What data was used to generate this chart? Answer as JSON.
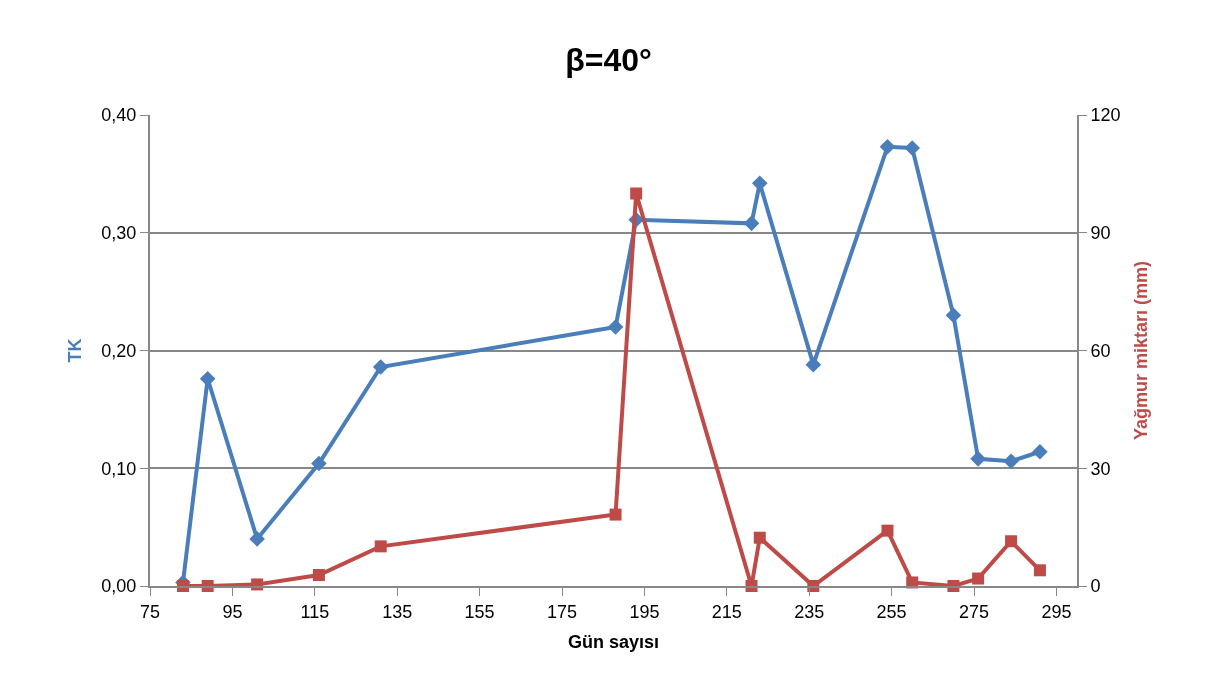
{
  "chart_data": {
    "type": "line",
    "title": "β=40°",
    "xlabel": "Gün sayısı",
    "ylabel": "TK",
    "y2label": "Yağmur miktarı (mm)",
    "x": [
      83,
      89,
      101,
      116,
      131,
      188,
      193,
      221,
      223,
      236,
      254,
      260,
      270,
      276,
      284,
      291
    ],
    "series": [
      {
        "color": "#4a7ebb",
        "marker": "diamond",
        "values": [
          0.003,
          0.176,
          0.04,
          0.104,
          0.186,
          0.22,
          0.311,
          0.308,
          0.342,
          0.188,
          0.373,
          0.372,
          0.23,
          0.108,
          0.106,
          0.114
        ]
      },
      {
        "color": "#be4b48",
        "marker": "square",
        "axis": "y2",
        "values": [
          0,
          0,
          0.4,
          2.8,
          10.1,
          18.2,
          100,
          0,
          12.3,
          0,
          14.1,
          0.9,
          0,
          1.9,
          11.4,
          4.0
        ]
      }
    ],
    "xlim": [
      75,
      300
    ],
    "xticks": [
      75,
      95,
      115,
      135,
      155,
      175,
      195,
      215,
      235,
      255,
      275,
      295
    ],
    "ylim": [
      0,
      0.4
    ],
    "yticks": [
      {
        "value": 0,
        "label": "0,00"
      },
      {
        "value": 0.1,
        "label": "0,10"
      },
      {
        "value": 0.2,
        "label": "0,20"
      },
      {
        "value": 0.3,
        "label": "0,30"
      },
      {
        "value": 0.4,
        "label": "0,40"
      }
    ],
    "y2lim": [
      0,
      120
    ],
    "y2ticks": [
      0,
      30,
      60,
      90,
      120
    ],
    "grid": "y",
    "line_style": "solid"
  }
}
